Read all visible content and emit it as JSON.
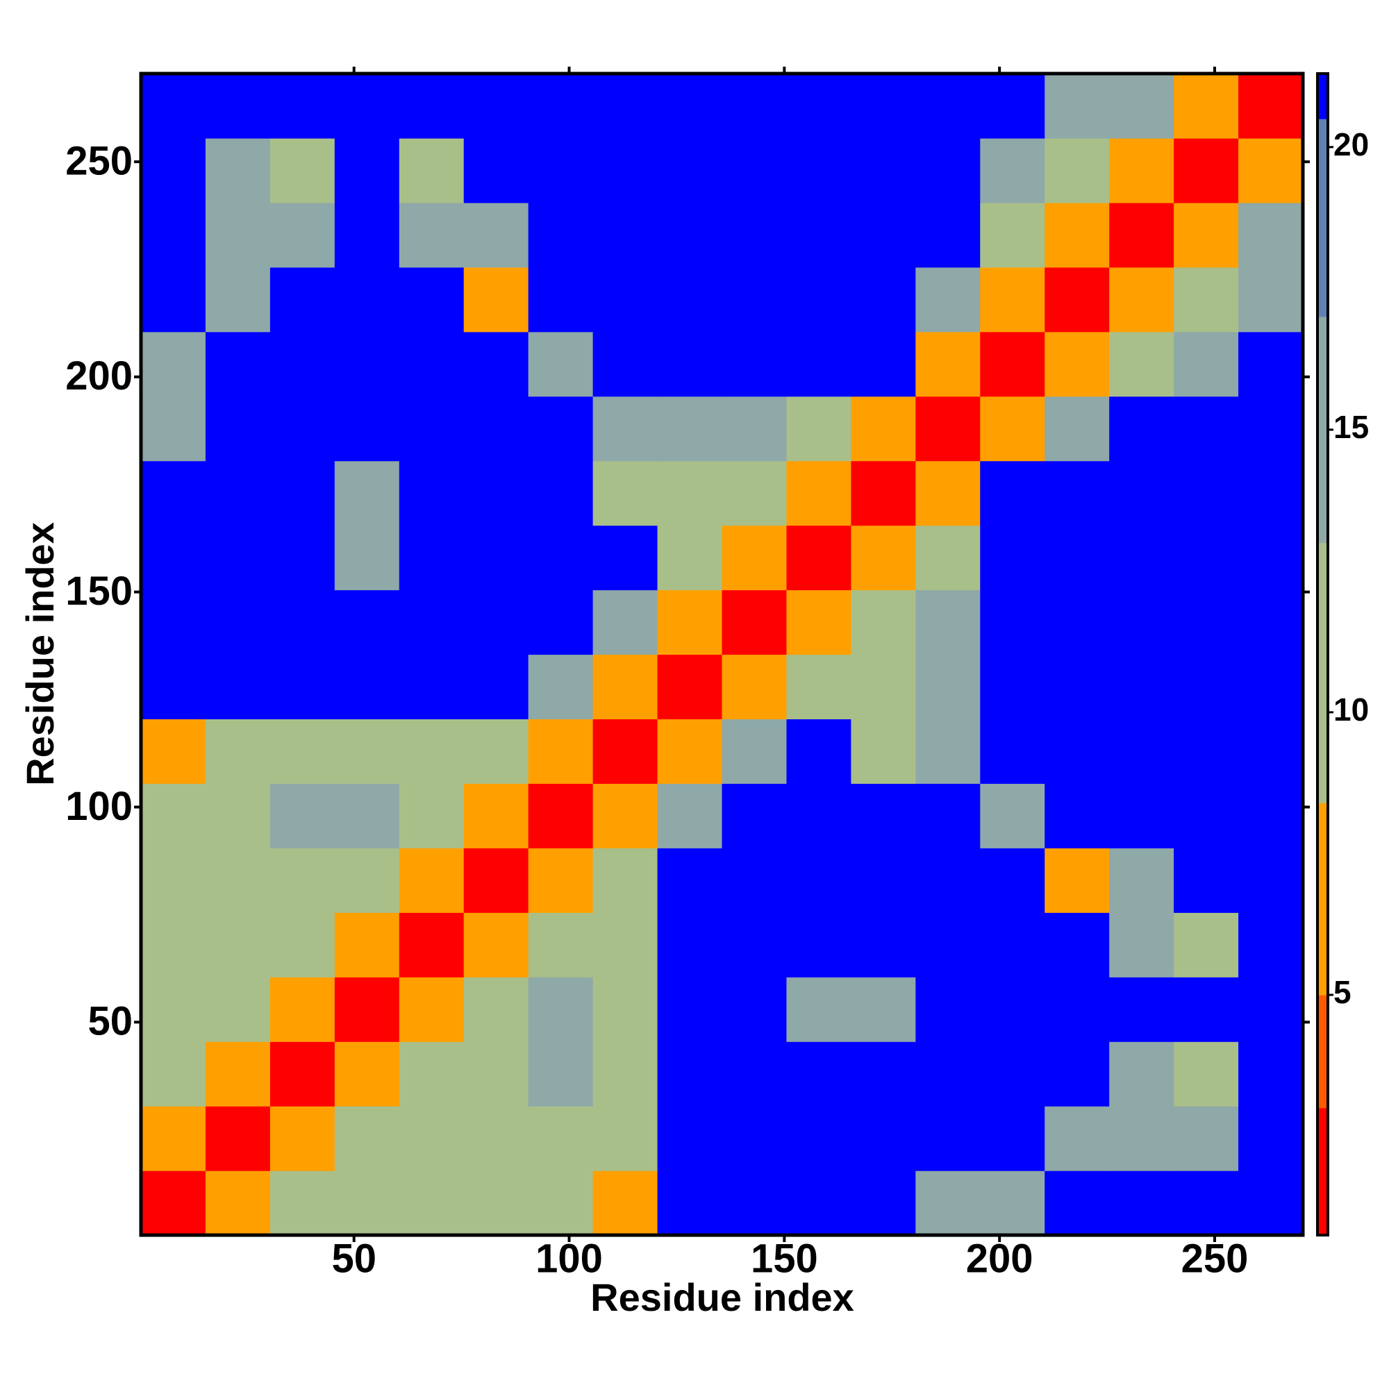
{
  "chart_data": {
    "type": "heatmap",
    "xlabel": "Residue index",
    "ylabel": "Residue index",
    "bins": [
      0.5,
      15.5,
      30.5,
      45.5,
      60.5,
      75.5,
      90.5,
      105.5,
      120.5,
      135.5,
      150.5,
      165.5,
      180.5,
      195.5,
      210.5,
      225.5,
      240.5,
      255.5,
      270.5
    ],
    "xlim": [
      0.5,
      270.5
    ],
    "ylim": [
      0.5,
      270.5
    ],
    "xticks": [
      50,
      100,
      150,
      200,
      250
    ],
    "yticks": [
      50,
      100,
      150,
      200,
      250
    ],
    "z": [
      [
        2,
        6,
        11,
        11,
        9,
        12,
        9,
        8,
        21,
        21,
        21,
        21,
        14,
        14,
        21,
        21,
        21,
        21
      ],
      [
        6,
        2,
        6,
        11,
        10,
        12,
        10,
        11,
        21,
        21,
        21,
        21,
        21,
        21,
        13,
        14,
        14,
        21
      ],
      [
        11,
        6,
        2,
        6,
        10,
        12,
        13,
        12,
        21,
        21,
        21,
        21,
        21,
        21,
        21,
        13,
        11,
        21
      ],
      [
        11,
        11,
        6,
        2,
        6,
        10,
        14,
        12,
        21,
        21,
        16,
        16,
        21,
        21,
        21,
        21,
        21,
        21
      ],
      [
        9,
        10,
        10,
        6,
        2,
        6,
        11,
        11,
        21,
        21,
        21,
        21,
        21,
        21,
        21,
        14,
        10,
        21
      ],
      [
        12,
        12,
        12,
        10,
        6,
        2,
        6,
        9,
        21,
        21,
        21,
        21,
        21,
        21,
        8,
        13,
        21,
        21
      ],
      [
        9,
        10,
        13,
        14,
        11,
        6,
        2,
        6,
        14,
        21,
        21,
        21,
        21,
        13,
        21,
        21,
        21,
        21
      ],
      [
        8,
        11,
        12,
        12,
        11,
        9,
        6,
        2,
        6,
        14,
        21,
        12,
        13,
        21,
        21,
        21,
        21,
        21
      ],
      [
        21,
        21,
        21,
        21,
        21,
        21,
        14,
        6,
        2,
        7,
        9,
        12,
        13,
        21,
        21,
        21,
        21,
        21
      ],
      [
        21,
        21,
        21,
        21,
        21,
        21,
        21,
        14,
        7,
        2,
        6,
        10,
        14,
        21,
        21,
        21,
        21,
        21
      ],
      [
        21,
        21,
        21,
        16,
        21,
        21,
        21,
        21,
        9,
        6,
        2,
        6,
        12,
        21,
        21,
        21,
        21,
        21
      ],
      [
        21,
        21,
        21,
        16,
        21,
        21,
        21,
        12,
        12,
        10,
        6,
        2,
        6,
        21,
        21,
        21,
        21,
        21
      ],
      [
        14,
        21,
        21,
        21,
        21,
        21,
        21,
        13,
        13,
        14,
        12,
        6,
        2,
        6,
        14,
        21,
        21,
        21
      ],
      [
        14,
        21,
        21,
        21,
        21,
        21,
        13,
        21,
        21,
        21,
        21,
        21,
        6,
        2,
        6,
        12,
        13,
        21
      ],
      [
        21,
        13,
        21,
        21,
        21,
        8,
        21,
        21,
        21,
        21,
        21,
        21,
        14,
        6,
        2,
        6,
        11,
        13
      ],
      [
        21,
        14,
        13,
        21,
        14,
        13,
        21,
        21,
        21,
        21,
        21,
        21,
        21,
        12,
        6,
        2,
        6,
        14
      ],
      [
        21,
        14,
        11,
        21,
        10,
        21,
        21,
        21,
        21,
        21,
        21,
        21,
        21,
        13,
        11,
        6,
        2,
        6
      ],
      [
        21,
        21,
        21,
        21,
        21,
        21,
        21,
        21,
        21,
        21,
        21,
        21,
        21,
        21,
        13,
        14,
        6,
        2
      ]
    ],
    "colorscale": {
      "bounds": [
        0.75,
        3,
        5,
        8.4,
        13,
        17,
        20.5,
        21.3
      ],
      "colors": [
        "#ff0000",
        "#ff5a00",
        "#ffa000",
        "#a9bf8a",
        "#8fa8a8",
        "#5f82b4",
        "#0000ff"
      ]
    },
    "clim": [
      0.75,
      21.3
    ],
    "cticks": [
      5,
      10,
      15,
      20
    ]
  }
}
